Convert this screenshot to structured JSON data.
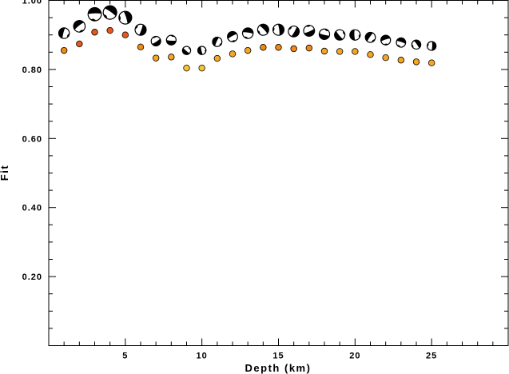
{
  "chart_data": {
    "type": "scatter",
    "title": "",
    "xlabel": "Depth (km)",
    "ylabel": "Fit",
    "xlim": [
      0,
      30
    ],
    "ylim": [
      0.0,
      1.0
    ],
    "x_ticks": [
      5,
      10,
      15,
      20,
      25
    ],
    "x_tick_labels": [
      "5",
      "10",
      "15",
      "20",
      "25"
    ],
    "y_ticks": [
      0.2,
      0.4,
      0.6,
      0.8,
      1.0
    ],
    "y_tick_labels": [
      "0.20",
      "0.40",
      "0.60",
      "0.80",
      "1.00"
    ],
    "grid": false,
    "legend": "none",
    "series": [
      {
        "marker": "focal-mechanism",
        "x": [
          1,
          2,
          3,
          4,
          5,
          6,
          7,
          8,
          9,
          10,
          11,
          12,
          13,
          14,
          15,
          16,
          17,
          18,
          19,
          20,
          21,
          22,
          23,
          24,
          25
        ],
        "values": [
          0.905,
          0.925,
          0.96,
          0.965,
          0.95,
          0.915,
          0.882,
          0.885,
          0.855,
          0.855,
          0.88,
          0.895,
          0.905,
          0.915,
          0.915,
          0.91,
          0.912,
          0.902,
          0.9,
          0.9,
          0.893,
          0.885,
          0.878,
          0.872,
          0.868
        ]
      },
      {
        "marker": "dot",
        "x": [
          1,
          2,
          3,
          4,
          5,
          6,
          7,
          8,
          9,
          10,
          11,
          12,
          13,
          14,
          15,
          16,
          17,
          18,
          19,
          20,
          21,
          22,
          23,
          24,
          25
        ],
        "values": [
          0.855,
          0.874,
          0.908,
          0.913,
          0.9,
          0.865,
          0.833,
          0.836,
          0.804,
          0.804,
          0.832,
          0.845,
          0.855,
          0.864,
          0.864,
          0.86,
          0.862,
          0.853,
          0.852,
          0.852,
          0.843,
          0.834,
          0.827,
          0.822,
          0.819
        ],
        "colors": [
          "#f08a14",
          "#e8581c",
          "#e8581c",
          "#e8581c",
          "#e8581c",
          "#f08a14",
          "#f5a623",
          "#f5a623",
          "#f7c62e",
          "#f7c62e",
          "#f5a623",
          "#f5a623",
          "#f5a623",
          "#f08a14",
          "#f08a14",
          "#f08a14",
          "#f08a14",
          "#f5a623",
          "#f5a623",
          "#f5a623",
          "#f5a623",
          "#f5a623",
          "#f5a623",
          "#f5a623",
          "#f5a623"
        ]
      }
    ]
  }
}
